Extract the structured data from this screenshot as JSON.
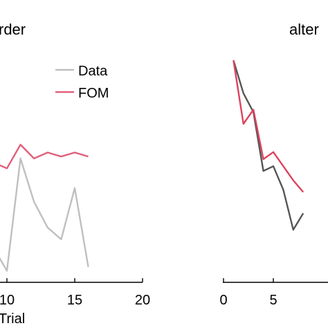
{
  "chart_data": [
    {
      "type": "line",
      "title": "rder",
      "xlabel": "Trial",
      "ylabel": "",
      "xlim": [
        0,
        20
      ],
      "ylim": [
        0,
        1
      ],
      "xticks": [
        10,
        15,
        20
      ],
      "legend": {
        "placement": "top-right"
      },
      "series": [
        {
          "name": "Data",
          "color": "#bfbfbf",
          "x": [
            9,
            10,
            11,
            12,
            13,
            14,
            15,
            16
          ],
          "y": [
            0.15,
            0.03,
            0.6,
            0.38,
            0.25,
            0.19,
            0.45,
            0.05
          ]
        },
        {
          "name": "FOM",
          "color": "#e0607a",
          "x": [
            9,
            10,
            11,
            12,
            13,
            14,
            15,
            16
          ],
          "y": [
            0.58,
            0.55,
            0.67,
            0.6,
            0.63,
            0.61,
            0.63,
            0.61
          ]
        }
      ]
    },
    {
      "type": "line",
      "title": "alter",
      "xlabel": "",
      "ylabel": "",
      "xlim": [
        0,
        10
      ],
      "ylim": [
        0,
        1
      ],
      "xticks": [
        0,
        5
      ],
      "series": [
        {
          "color": "#555555",
          "x": [
            1,
            2,
            3,
            4,
            5,
            6,
            7,
            8
          ],
          "y": [
            0.92,
            0.78,
            0.7,
            0.45,
            0.47,
            0.37,
            0.2,
            0.27
          ]
        },
        {
          "color": "#d9435f",
          "x": [
            1,
            2,
            3,
            4,
            5,
            6,
            7,
            8
          ],
          "y": [
            0.92,
            0.65,
            0.71,
            0.5,
            0.53,
            0.47,
            0.41,
            0.36
          ]
        }
      ]
    }
  ]
}
